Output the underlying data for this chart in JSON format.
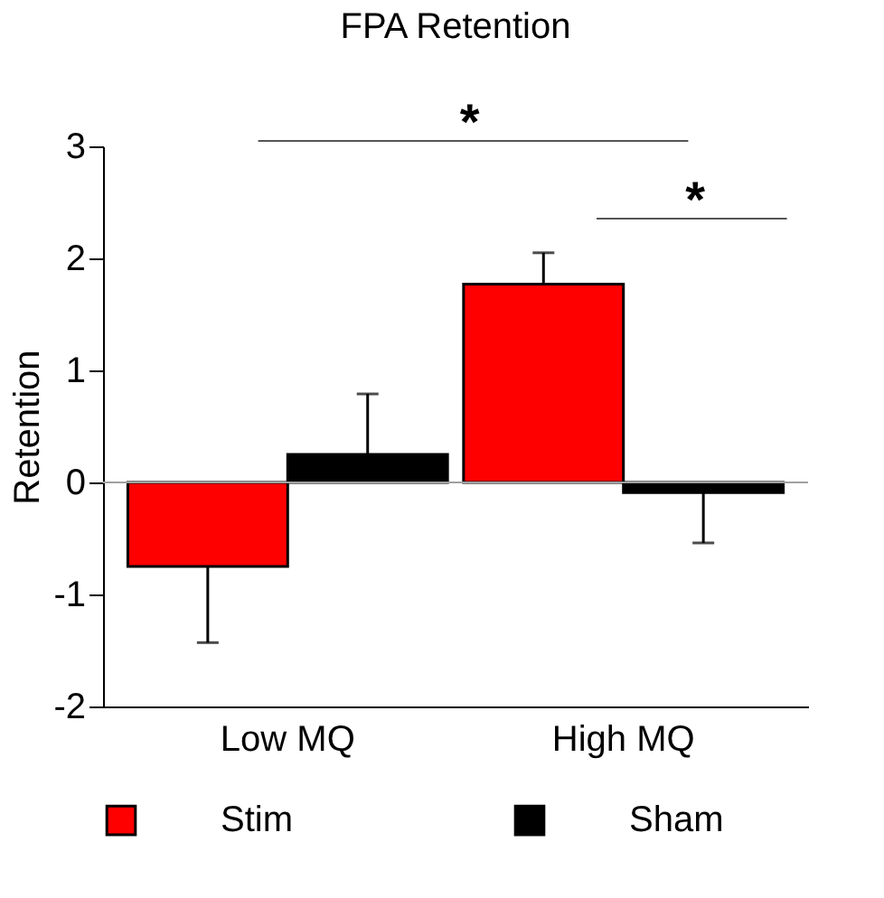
{
  "chart_data": {
    "type": "bar",
    "title": "FPA Retention",
    "ylabel": "Retention",
    "categories": [
      "Low MQ",
      "High MQ"
    ],
    "series": [
      {
        "name": "Stim",
        "color": "#ff0000",
        "values": [
          -0.75,
          1.77
        ],
        "errors": [
          [
            -1.43,
            -0.75
          ],
          [
            1.77,
            2.05
          ]
        ]
      },
      {
        "name": "Sham",
        "color": "#000000",
        "values": [
          0.25,
          -0.09
        ],
        "errors": [
          [
            0.25,
            0.79
          ],
          [
            -0.54,
            -0.09
          ]
        ]
      }
    ],
    "ylim": [
      -2,
      3
    ],
    "yticks": [
      -2,
      -1,
      0,
      1,
      2,
      3
    ],
    "ref_lines": [
      {
        "axis": "y",
        "value": 0,
        "color": "#a0a0a0"
      }
    ],
    "annotations": [
      "*",
      "*"
    ],
    "grid": false,
    "legend": "bottom"
  }
}
